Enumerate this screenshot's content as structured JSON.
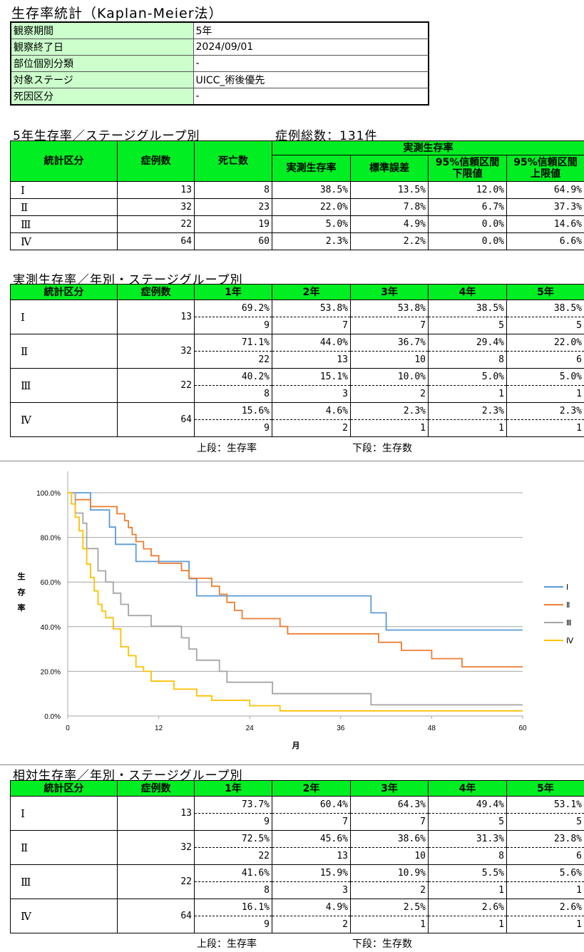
{
  "title": "生存率統計（Kaplan-Meier法）",
  "info": [
    {
      "label": "観察期間",
      "value": "5年"
    },
    {
      "label": "観察終了日",
      "value": "2024/09/01"
    },
    {
      "label": "部位個別分類",
      "value": "-"
    },
    {
      "label": "対象ステージ",
      "value": "UICC_術後優先"
    },
    {
      "label": "死因区分",
      "value": "-"
    }
  ],
  "five_year": {
    "heading": "5年生存率／ステージグループ別",
    "total": "症例総数：131件",
    "headers": {
      "group": "統計区分",
      "cases": "症例数",
      "deaths": "死亡数",
      "measured": "実測生存率",
      "rate": "実測生存率",
      "se": "標準誤差",
      "ci_low": "95%信頼区間\n下限値",
      "ci_high": "95%信頼区間\n上限値"
    },
    "rows": [
      {
        "group": "Ⅰ",
        "cases": "13",
        "deaths": "8",
        "rate": "38.5%",
        "se": "13.5%",
        "lo": "12.0%",
        "hi": "64.9%"
      },
      {
        "group": "Ⅱ",
        "cases": "32",
        "deaths": "23",
        "rate": "22.0%",
        "se": "7.8%",
        "lo": "6.7%",
        "hi": "37.3%"
      },
      {
        "group": "Ⅲ",
        "cases": "22",
        "deaths": "19",
        "rate": "5.0%",
        "se": "4.9%",
        "lo": "0.0%",
        "hi": "14.6%"
      },
      {
        "group": "Ⅳ",
        "cases": "64",
        "deaths": "60",
        "rate": "2.3%",
        "se": "2.2%",
        "lo": "0.0%",
        "hi": "6.6%"
      }
    ]
  },
  "yearly": {
    "heading": "実測生存率／年別・ステージグループ別",
    "headers": [
      "統計区分",
      "症例数",
      "1年",
      "2年",
      "3年",
      "4年",
      "5年"
    ],
    "rows": [
      {
        "group": "Ⅰ",
        "cases": "13",
        "rates": [
          "69.2%",
          "53.8%",
          "53.8%",
          "38.5%",
          "38.5%"
        ],
        "counts": [
          "9",
          "7",
          "7",
          "5",
          "5"
        ]
      },
      {
        "group": "Ⅱ",
        "cases": "32",
        "rates": [
          "71.1%",
          "44.0%",
          "36.7%",
          "29.4%",
          "22.0%"
        ],
        "counts": [
          "22",
          "13",
          "10",
          "8",
          "6"
        ]
      },
      {
        "group": "Ⅲ",
        "cases": "22",
        "rates": [
          "40.2%",
          "15.1%",
          "10.0%",
          "5.0%",
          "5.0%"
        ],
        "counts": [
          "8",
          "3",
          "2",
          "1",
          "1"
        ]
      },
      {
        "group": "Ⅳ",
        "cases": "64",
        "rates": [
          "15.6%",
          "4.6%",
          "2.3%",
          "2.3%",
          "2.3%"
        ],
        "counts": [
          "9",
          "2",
          "1",
          "1",
          "1"
        ]
      }
    ],
    "note_top": "上段：生存率",
    "note_bottom": "下段：生存数"
  },
  "relative": {
    "heading": "相対生存率／年別・ステージグループ別",
    "headers": [
      "統計区分",
      "症例数",
      "1年",
      "2年",
      "3年",
      "4年",
      "5年"
    ],
    "rows": [
      {
        "group": "Ⅰ",
        "cases": "13",
        "rates": [
          "73.7%",
          "60.4%",
          "64.3%",
          "49.4%",
          "53.1%"
        ],
        "counts": [
          "9",
          "7",
          "7",
          "5",
          "5"
        ]
      },
      {
        "group": "Ⅱ",
        "cases": "32",
        "rates": [
          "72.5%",
          "45.6%",
          "38.6%",
          "31.3%",
          "23.8%"
        ],
        "counts": [
          "22",
          "13",
          "10",
          "8",
          "6"
        ]
      },
      {
        "group": "Ⅲ",
        "cases": "22",
        "rates": [
          "41.6%",
          "15.9%",
          "10.9%",
          "5.5%",
          "5.6%"
        ],
        "counts": [
          "8",
          "3",
          "2",
          "1",
          "1"
        ]
      },
      {
        "group": "Ⅳ",
        "cases": "64",
        "rates": [
          "16.1%",
          "4.9%",
          "2.5%",
          "2.6%",
          "2.6%"
        ],
        "counts": [
          "9",
          "2",
          "1",
          "1",
          "1"
        ]
      }
    ],
    "note_top": "上段：生存率",
    "note_bottom": "下段：生存数"
  },
  "chart_data": {
    "type": "line",
    "xlabel": "月",
    "ylabel": "生存率",
    "xlim": [
      0,
      60
    ],
    "ylim": [
      0,
      100
    ],
    "xticks": [
      "0",
      "12",
      "24",
      "36",
      "48",
      "60"
    ],
    "yticks": [
      "0.0%",
      "20.0%",
      "40.0%",
      "60.0%",
      "80.0%",
      "100.0%"
    ],
    "grid": true,
    "legend": "right",
    "series": [
      {
        "name": "Ⅰ",
        "color": "#5b9bd5",
        "points": [
          [
            0,
            100
          ],
          [
            3,
            100
          ],
          [
            3,
            92.3
          ],
          [
            5.5,
            92.3
          ],
          [
            5.5,
            84.6
          ],
          [
            6.3,
            84.6
          ],
          [
            6.3,
            76.9
          ],
          [
            9,
            76.9
          ],
          [
            9,
            69.2
          ],
          [
            16,
            69.2
          ],
          [
            16,
            61.5
          ],
          [
            17,
            61.5
          ],
          [
            17,
            53.8
          ],
          [
            40,
            53.8
          ],
          [
            40,
            46.2
          ],
          [
            42,
            46.2
          ],
          [
            42,
            38.5
          ],
          [
            60,
            38.5
          ]
        ]
      },
      {
        "name": "Ⅱ",
        "color": "#ed7d31",
        "points": [
          [
            0,
            100
          ],
          [
            1,
            100
          ],
          [
            1,
            96.9
          ],
          [
            3,
            96.9
          ],
          [
            3,
            93.8
          ],
          [
            6.5,
            93.8
          ],
          [
            6.5,
            90.6
          ],
          [
            7.5,
            90.6
          ],
          [
            7.5,
            87.5
          ],
          [
            8,
            87.5
          ],
          [
            8,
            84.4
          ],
          [
            8.5,
            84.4
          ],
          [
            8.5,
            81.3
          ],
          [
            9,
            81.3
          ],
          [
            9,
            78.1
          ],
          [
            10,
            78.1
          ],
          [
            10,
            74.9
          ],
          [
            11,
            74.9
          ],
          [
            11,
            71.8
          ],
          [
            12,
            71.8
          ],
          [
            12,
            68.4
          ],
          [
            15,
            68.4
          ],
          [
            15,
            65.1
          ],
          [
            16,
            65.1
          ],
          [
            16,
            61.7
          ],
          [
            19,
            61.7
          ],
          [
            19,
            58.1
          ],
          [
            20,
            58.1
          ],
          [
            20,
            54.5
          ],
          [
            21,
            54.5
          ],
          [
            21,
            50.9
          ],
          [
            22,
            50.9
          ],
          [
            22,
            47.3
          ],
          [
            23,
            47.3
          ],
          [
            23,
            43.6
          ],
          [
            28,
            43.6
          ],
          [
            28,
            40.1
          ],
          [
            29,
            40.1
          ],
          [
            29,
            36.8
          ],
          [
            41,
            36.8
          ],
          [
            41,
            33.0
          ],
          [
            44,
            33.0
          ],
          [
            44,
            29.4
          ],
          [
            48,
            29.4
          ],
          [
            48,
            25.7
          ],
          [
            52,
            25.7
          ],
          [
            52,
            22.0
          ],
          [
            60,
            22.0
          ]
        ]
      },
      {
        "name": "Ⅲ",
        "color": "#a5a5a5",
        "points": [
          [
            0,
            100
          ],
          [
            1,
            100
          ],
          [
            1,
            90.9
          ],
          [
            2,
            90.9
          ],
          [
            2,
            86.4
          ],
          [
            2.5,
            86.4
          ],
          [
            2.5,
            75.0
          ],
          [
            4,
            75.0
          ],
          [
            4,
            65.0
          ],
          [
            5,
            65.0
          ],
          [
            5,
            60.0
          ],
          [
            6,
            60.0
          ],
          [
            6,
            55.0
          ],
          [
            7,
            55.0
          ],
          [
            7,
            50.0
          ],
          [
            8,
            50.0
          ],
          [
            8,
            45.0
          ],
          [
            11,
            45.0
          ],
          [
            11,
            40.2
          ],
          [
            15,
            40.2
          ],
          [
            15,
            35.0
          ],
          [
            16,
            35.0
          ],
          [
            16,
            30.0
          ],
          [
            17,
            30.0
          ],
          [
            17,
            25.0
          ],
          [
            20,
            25.0
          ],
          [
            20,
            20.0
          ],
          [
            21,
            20.0
          ],
          [
            21,
            15.1
          ],
          [
            27,
            15.1
          ],
          [
            27,
            10.0
          ],
          [
            40,
            10.0
          ],
          [
            40,
            5.0
          ],
          [
            60,
            5.0
          ]
        ]
      },
      {
        "name": "Ⅳ",
        "color": "#ffc000",
        "points": [
          [
            0,
            100
          ],
          [
            0.5,
            100
          ],
          [
            0.5,
            95
          ],
          [
            1,
            95
          ],
          [
            1,
            89
          ],
          [
            1.5,
            89
          ],
          [
            1.5,
            83
          ],
          [
            2,
            83
          ],
          [
            2,
            75
          ],
          [
            2.5,
            75
          ],
          [
            2.5,
            68
          ],
          [
            3,
            68
          ],
          [
            3,
            62
          ],
          [
            3.5,
            62
          ],
          [
            3.5,
            56
          ],
          [
            4,
            56
          ],
          [
            4,
            50
          ],
          [
            4.5,
            50
          ],
          [
            4.5,
            47
          ],
          [
            5,
            47
          ],
          [
            5,
            44
          ],
          [
            6,
            44
          ],
          [
            6,
            39
          ],
          [
            7,
            39
          ],
          [
            7,
            31
          ],
          [
            8,
            31
          ],
          [
            8,
            27
          ],
          [
            9,
            27
          ],
          [
            9,
            22
          ],
          [
            10,
            22
          ],
          [
            10,
            20
          ],
          [
            11,
            20
          ],
          [
            11,
            15.6
          ],
          [
            14,
            15.6
          ],
          [
            14,
            12
          ],
          [
            17,
            12
          ],
          [
            17,
            9
          ],
          [
            19,
            9
          ],
          [
            19,
            7
          ],
          [
            24,
            7
          ],
          [
            24,
            4.6
          ],
          [
            28,
            4.6
          ],
          [
            28,
            2.3
          ],
          [
            60,
            2.3
          ]
        ]
      }
    ]
  }
}
